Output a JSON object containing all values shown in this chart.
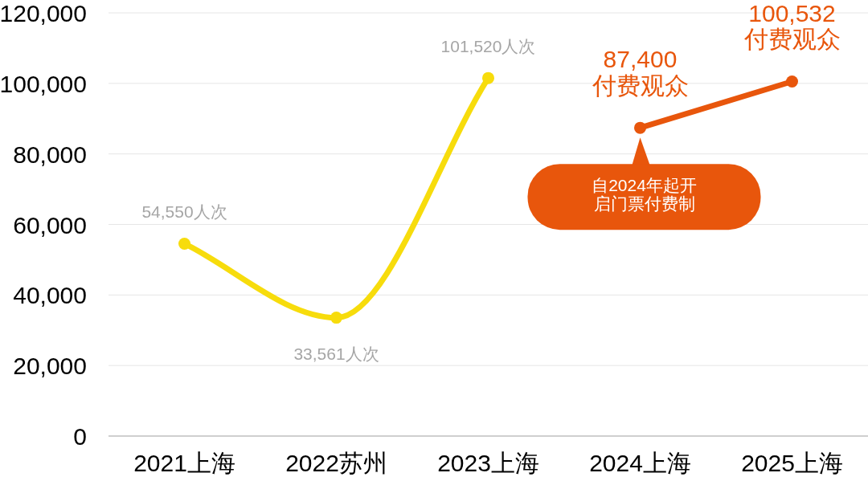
{
  "chart_data": {
    "type": "line",
    "categories": [
      "2021上海",
      "2022苏州",
      "2023上海",
      "2024上海",
      "2025上海"
    ],
    "series": [
      {
        "color": "#f7dc0c",
        "values": [
          54550,
          33561,
          101520,
          null,
          null
        ],
        "value_labels": [
          "54,550人次",
          "33,561人次",
          "101,520人次",
          null,
          null
        ]
      },
      {
        "color": "#e8560c",
        "values": [
          null,
          null,
          null,
          87400,
          100532
        ],
        "value_labels": [
          null,
          null,
          null,
          "87,400\n付费观众",
          "100,532\n付费观众"
        ]
      }
    ],
    "ylim": [
      0,
      120000
    ],
    "yticks": [
      {
        "value": 0,
        "label": "0"
      },
      {
        "value": 20000,
        "label": "20,000"
      },
      {
        "value": 40000,
        "label": "40,000"
      },
      {
        "value": 60000,
        "label": "60,000"
      },
      {
        "value": 80000,
        "label": "80,000"
      },
      {
        "value": 100000,
        "label": "100,000"
      },
      {
        "value": 120000,
        "label": "120,000"
      }
    ],
    "grid": "y",
    "marker": "circle",
    "line_style": "solid",
    "annotations": [
      {
        "text": "自2024年起开启门票付费制",
        "x": "2024上海",
        "y": 87400
      }
    ]
  }
}
